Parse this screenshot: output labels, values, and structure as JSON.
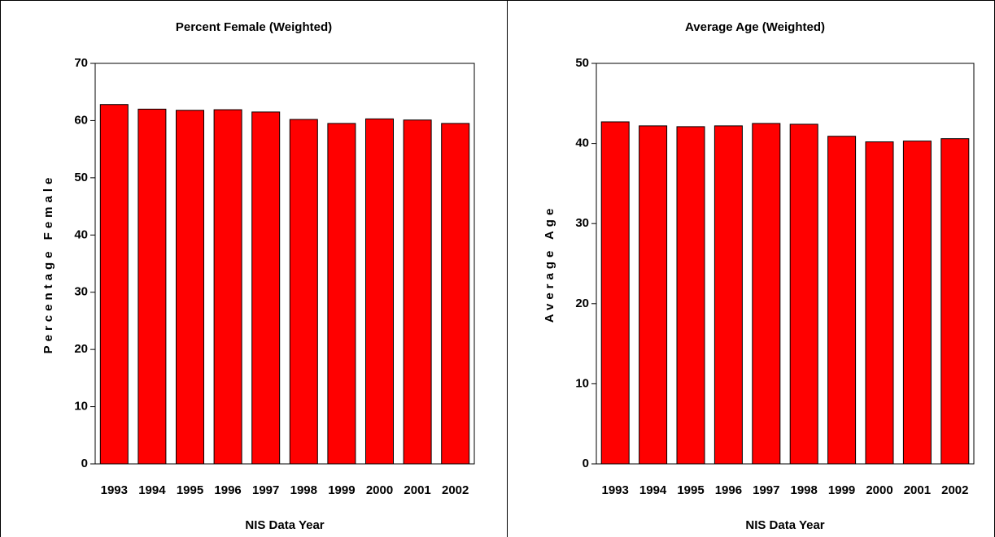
{
  "chart_data": [
    {
      "type": "bar",
      "title": "Percent Female (Weighted)",
      "x_label": "NIS Data Year",
      "y_label": "Percentage Female",
      "categories": [
        "1993",
        "1994",
        "1995",
        "1996",
        "1997",
        "1998",
        "1999",
        "2000",
        "2001",
        "2002"
      ],
      "values": [
        62.8,
        62.0,
        61.8,
        61.9,
        61.5,
        60.2,
        59.5,
        60.3,
        60.1,
        59.5
      ],
      "color": "#ff0000",
      "ylim": [
        0,
        70
      ],
      "yticks": [
        0,
        10,
        20,
        30,
        40,
        50,
        60,
        70
      ]
    },
    {
      "type": "bar",
      "title": "Average Age (Weighted)",
      "x_label": "NIS Data Year",
      "y_label": "Average Age",
      "categories": [
        "1993",
        "1994",
        "1995",
        "1996",
        "1997",
        "1998",
        "1999",
        "2000",
        "2001",
        "2002"
      ],
      "values": [
        42.7,
        42.2,
        42.1,
        42.2,
        42.5,
        42.4,
        40.9,
        40.2,
        40.3,
        40.6
      ],
      "color": "#ff0000",
      "ylim": [
        0,
        50
      ],
      "yticks": [
        0,
        10,
        20,
        30,
        40,
        50
      ]
    }
  ]
}
